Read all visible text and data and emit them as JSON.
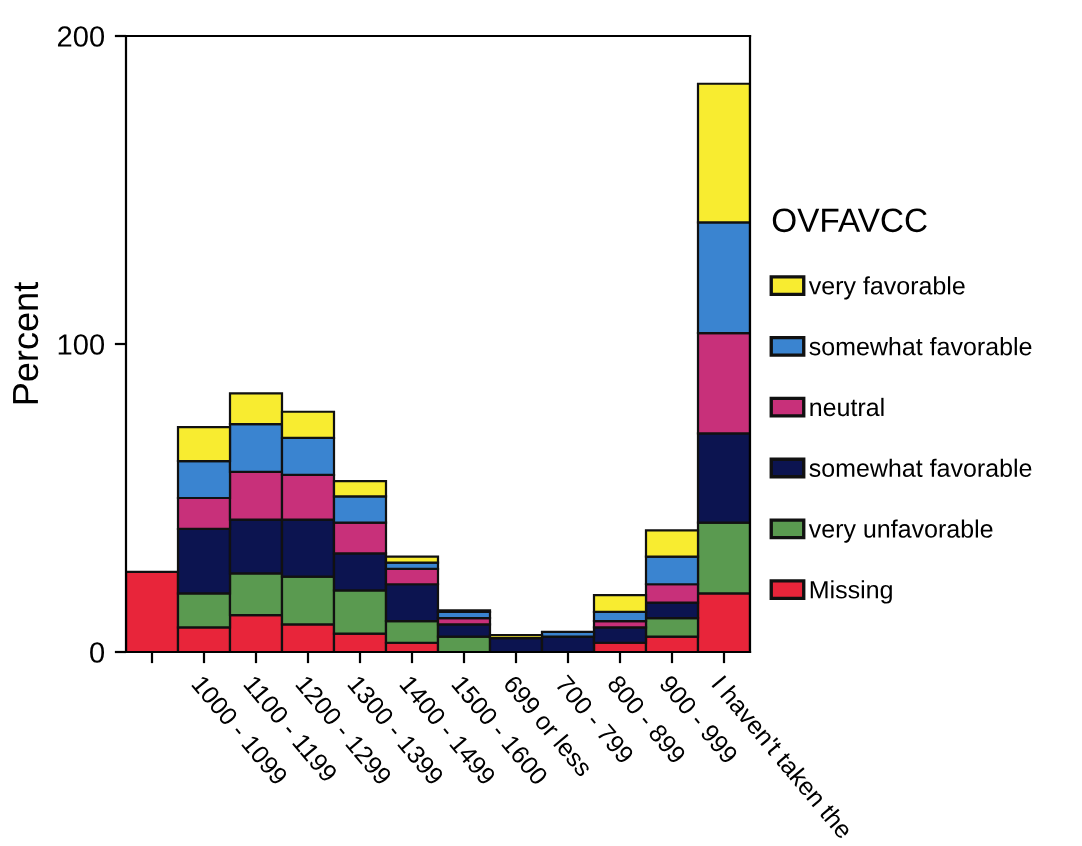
{
  "chart_data": {
    "type": "bar",
    "stacked": true,
    "ylabel": "Percent",
    "legend_title": "OVFAVCC",
    "legend": "right",
    "categories": [
      null,
      "1000 - 1099",
      "1100 - 1199",
      "1200 - 1299",
      "1300 - 1399",
      "1400 - 1499",
      "1500 - 1600",
      "699 or less",
      "700 - 799",
      "800 - 899",
      "900 - 999",
      "I haven't taken the"
    ],
    "ylim": [
      0,
      200
    ],
    "yticks": [
      0,
      100,
      200
    ],
    "grid": false,
    "series": [
      {
        "name": "Missing",
        "color": "#e8253a",
        "values": [
          26,
          8,
          12,
          9,
          6,
          3,
          null,
          0,
          0,
          3,
          5,
          19
        ]
      },
      {
        "name": "very unfavorable",
        "color": "#5a9a50",
        "values": [
          0,
          11,
          13.5,
          15.5,
          14,
          7,
          5,
          0,
          0,
          null,
          6,
          23
        ]
      },
      {
        "name": "somewhat favorable",
        "color": "#0c1450",
        "values": [
          0,
          21,
          17.5,
          18.5,
          12,
          12,
          4,
          4.5,
          5,
          5,
          5,
          29
        ]
      },
      {
        "name": "neutral",
        "color": "#c8307a",
        "values": [
          0,
          10,
          15.5,
          14.5,
          10,
          5,
          2,
          0,
          0,
          2,
          6,
          32.5
        ]
      },
      {
        "name": "somewhat favorable",
        "color": "#3a84d0",
        "values": [
          0,
          12,
          15.5,
          12,
          8.5,
          2,
          2,
          0,
          1.5,
          3,
          9,
          36
        ]
      },
      {
        "name": "very favorable",
        "color": "#f8ec30",
        "values": [
          0,
          11,
          10,
          8.5,
          5,
          2,
          0.5,
          1,
          0,
          5.5,
          8.5,
          45
        ]
      }
    ]
  }
}
